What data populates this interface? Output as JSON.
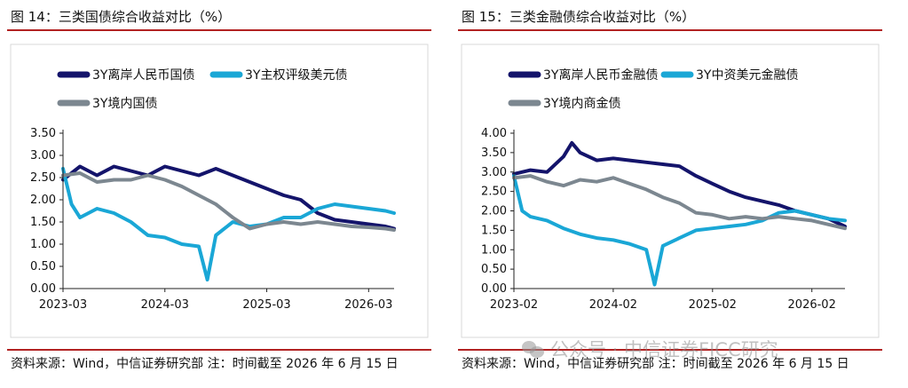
{
  "figures": [
    {
      "title": "图 14：三类国债综合收益对比（%）",
      "source": "资料来源：Wind，中信证券研究部  注：时间截至 2026 年 6 月 15 日"
    },
    {
      "title": "图 15：三类金融债综合收益对比（%）",
      "source": "资料来源：Wind，中信证券研究部  注：时间截至 2026 年 6 月 15 日"
    }
  ],
  "watermark": {
    "text": "公众号 · 中信证券FICC研究",
    "icon": "wechat-icon"
  },
  "chart_data": [
    {
      "type": "line",
      "ylim": [
        0.0,
        3.5
      ],
      "yticks": [
        "0.00",
        "0.50",
        "1.00",
        "1.50",
        "2.00",
        "2.50",
        "3.00",
        "3.50"
      ],
      "xticks": [
        "2023-03",
        "2024-03",
        "2025-03",
        "2026-03"
      ],
      "x_range": [
        "2023-03",
        "2026-06"
      ],
      "legend_placement": "top",
      "grid": false,
      "series": [
        {
          "name": "3Y离岸人民币国债",
          "color": "#14146b",
          "x": [
            "2023-03",
            "2023-05",
            "2023-07",
            "2023-09",
            "2023-11",
            "2024-01",
            "2024-03",
            "2024-05",
            "2024-07",
            "2024-09",
            "2024-11",
            "2025-01",
            "2025-03",
            "2025-05",
            "2025-07",
            "2025-09",
            "2025-11",
            "2026-01",
            "2026-03",
            "2026-05",
            "2026-06"
          ],
          "values": [
            2.45,
            2.75,
            2.55,
            2.75,
            2.65,
            2.55,
            2.75,
            2.65,
            2.55,
            2.7,
            2.55,
            2.4,
            2.25,
            2.1,
            2.0,
            1.7,
            1.55,
            1.5,
            1.45,
            1.4,
            1.35
          ]
        },
        {
          "name": "3Y主权评级美元债",
          "color": "#1aa7d6",
          "x": [
            "2023-03",
            "2023-04",
            "2023-05",
            "2023-07",
            "2023-09",
            "2023-11",
            "2024-01",
            "2024-03",
            "2024-05",
            "2024-07",
            "2024-08",
            "2024-09",
            "2024-11",
            "2025-01",
            "2025-03",
            "2025-05",
            "2025-07",
            "2025-09",
            "2025-11",
            "2026-01",
            "2026-03",
            "2026-05",
            "2026-06"
          ],
          "values": [
            2.7,
            1.9,
            1.6,
            1.8,
            1.7,
            1.5,
            1.2,
            1.15,
            1.0,
            0.95,
            0.2,
            1.2,
            1.5,
            1.4,
            1.45,
            1.6,
            1.6,
            1.8,
            1.9,
            1.85,
            1.8,
            1.75,
            1.7
          ]
        },
        {
          "name": "3Y境内国债",
          "color": "#7c8790",
          "x": [
            "2023-03",
            "2023-05",
            "2023-07",
            "2023-09",
            "2023-11",
            "2024-01",
            "2024-03",
            "2024-05",
            "2024-07",
            "2024-09",
            "2024-11",
            "2025-01",
            "2025-03",
            "2025-05",
            "2025-07",
            "2025-09",
            "2025-11",
            "2026-01",
            "2026-03",
            "2026-05",
            "2026-06"
          ],
          "values": [
            2.55,
            2.6,
            2.4,
            2.45,
            2.45,
            2.55,
            2.45,
            2.3,
            2.1,
            1.9,
            1.6,
            1.35,
            1.45,
            1.5,
            1.45,
            1.5,
            1.45,
            1.4,
            1.38,
            1.35,
            1.32
          ]
        }
      ]
    },
    {
      "type": "line",
      "ylim": [
        0.0,
        4.0
      ],
      "yticks": [
        "0.00",
        "0.50",
        "1.00",
        "1.50",
        "2.00",
        "2.50",
        "3.00",
        "3.50",
        "4.00"
      ],
      "xticks": [
        "2023-02",
        "2024-02",
        "2025-02",
        "2026-02"
      ],
      "x_range": [
        "2023-02",
        "2026-06"
      ],
      "legend_placement": "top",
      "grid": false,
      "series": [
        {
          "name": "3Y离岸人民币金融债",
          "color": "#14146b",
          "x": [
            "2023-02",
            "2023-04",
            "2023-06",
            "2023-08",
            "2023-09",
            "2023-10",
            "2023-12",
            "2024-02",
            "2024-04",
            "2024-06",
            "2024-08",
            "2024-10",
            "2024-12",
            "2025-02",
            "2025-04",
            "2025-06",
            "2025-08",
            "2025-10",
            "2025-12",
            "2026-02",
            "2026-04",
            "2026-06"
          ],
          "values": [
            2.95,
            3.05,
            3.0,
            3.4,
            3.75,
            3.5,
            3.3,
            3.35,
            3.3,
            3.25,
            3.2,
            3.15,
            2.9,
            2.7,
            2.5,
            2.35,
            2.25,
            2.15,
            2.0,
            1.9,
            1.8,
            1.6
          ]
        },
        {
          "name": "3Y中资美元金融债",
          "color": "#1aa7d6",
          "x": [
            "2023-02",
            "2023-03",
            "2023-04",
            "2023-06",
            "2023-08",
            "2023-10",
            "2023-12",
            "2024-02",
            "2024-04",
            "2024-06",
            "2024-07",
            "2024-08",
            "2024-10",
            "2024-12",
            "2025-02",
            "2025-04",
            "2025-06",
            "2025-08",
            "2025-10",
            "2025-12",
            "2026-02",
            "2026-04",
            "2026-06"
          ],
          "values": [
            2.9,
            2.0,
            1.85,
            1.75,
            1.55,
            1.4,
            1.3,
            1.25,
            1.15,
            1.0,
            0.1,
            1.1,
            1.3,
            1.5,
            1.55,
            1.6,
            1.65,
            1.75,
            1.95,
            2.0,
            1.9,
            1.8,
            1.75
          ]
        },
        {
          "name": "3Y境内商金债",
          "color": "#7c8790",
          "x": [
            "2023-02",
            "2023-04",
            "2023-06",
            "2023-08",
            "2023-10",
            "2023-12",
            "2024-02",
            "2024-04",
            "2024-06",
            "2024-08",
            "2024-10",
            "2024-12",
            "2025-02",
            "2025-04",
            "2025-06",
            "2025-08",
            "2025-10",
            "2025-12",
            "2026-02",
            "2026-04",
            "2026-06"
          ],
          "values": [
            2.85,
            2.9,
            2.75,
            2.65,
            2.8,
            2.75,
            2.85,
            2.7,
            2.55,
            2.35,
            2.2,
            1.95,
            1.9,
            1.8,
            1.85,
            1.8,
            1.85,
            1.8,
            1.75,
            1.65,
            1.55
          ]
        }
      ]
    }
  ]
}
